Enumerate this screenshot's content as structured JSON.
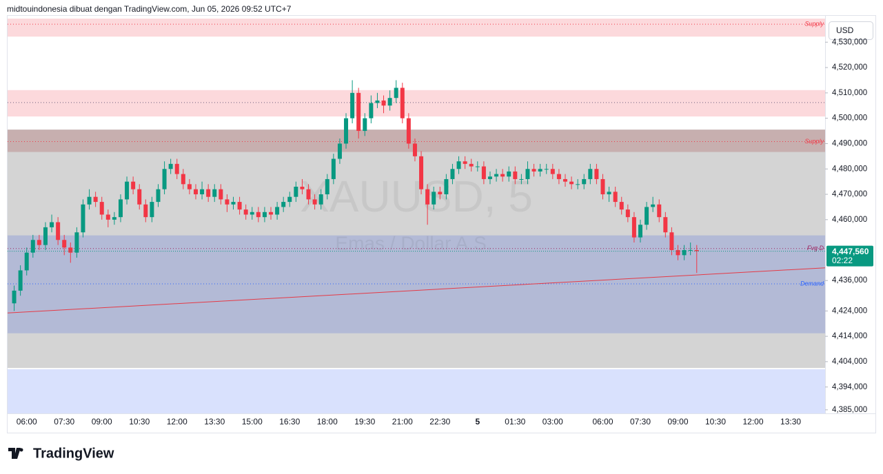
{
  "header": {
    "text": "midtouindonesia dibuat dengan TradingView.com, Jun 05, 2026 09:52 UTC+7"
  },
  "toolbar": {
    "currency": "USD"
  },
  "footer": {
    "logo": "TradingView"
  },
  "chart_data": {
    "type": "candlestick",
    "watermark": {
      "symbol": "XAUUSD, 5",
      "description": "Emas / Dollar A.S."
    },
    "ylim": [
      4383600,
      4539300
    ],
    "yticks": [
      {
        "value": 4530000,
        "label": "4,530,000"
      },
      {
        "value": 4520000,
        "label": "4,520,000"
      },
      {
        "value": 4510000,
        "label": "4,510,000"
      },
      {
        "value": 4500000,
        "label": "4,500,000"
      },
      {
        "value": 4490000,
        "label": "4,490,000"
      },
      {
        "value": 4480000,
        "label": "4,480,000"
      },
      {
        "value": 4470000,
        "label": "4,470,000"
      },
      {
        "value": 4460000,
        "label": "4,460,000"
      },
      {
        "value": 4436000,
        "label": "4,436,000"
      },
      {
        "value": 4424000,
        "label": "4,424,000"
      },
      {
        "value": 4414000,
        "label": "4,414,000"
      },
      {
        "value": 4404000,
        "label": "4,404,000"
      },
      {
        "value": 4394000,
        "label": "4,394,000"
      },
      {
        "value": 4385000,
        "label": "4,385,000"
      }
    ],
    "categories": [
      null,
      null,
      "06:00",
      null,
      null,
      null,
      null,
      null,
      "07:30",
      null,
      null,
      null,
      null,
      null,
      "09:00",
      null,
      null,
      null,
      null,
      null,
      "10:30",
      null,
      null,
      null,
      null,
      null,
      "12:00",
      null,
      null,
      null,
      null,
      null,
      "13:30",
      null,
      null,
      null,
      null,
      null,
      "15:00",
      null,
      null,
      null,
      null,
      null,
      "16:30",
      null,
      null,
      null,
      null,
      null,
      "18:00",
      null,
      null,
      null,
      null,
      null,
      "19:30",
      null,
      null,
      null,
      null,
      null,
      "21:00",
      null,
      null,
      null,
      null,
      null,
      "22:30",
      null,
      null,
      null,
      null,
      null,
      "5",
      null,
      null,
      null,
      null,
      null,
      "01:30",
      null,
      null,
      null,
      null,
      null,
      "03:00",
      null,
      null,
      null,
      null,
      null,
      null,
      null,
      "06:00",
      null,
      null,
      null,
      null,
      null,
      "07:30",
      null,
      null,
      null,
      null,
      null,
      "09:00",
      null,
      null,
      null,
      null,
      null,
      "10:30",
      null,
      null,
      null,
      null,
      null,
      "12:00",
      null,
      null,
      null,
      null,
      null,
      "13:30",
      null,
      null,
      null,
      null,
      null
    ],
    "up_color": "#089981",
    "down_color": "#f23645",
    "open": [
      4427000,
      4432000,
      4440000,
      4447000,
      4452000,
      4450000,
      4457000,
      4459000,
      4452000,
      4449000,
      4447000,
      4455000,
      4466000,
      4469000,
      4467000,
      4462000,
      4460000,
      4461000,
      4468000,
      4475000,
      4472000,
      4466000,
      4461000,
      4467000,
      4472000,
      4480000,
      4482000,
      4478000,
      4474000,
      4472000,
      4470000,
      4472000,
      4469000,
      4472000,
      4468000,
      4466000,
      4467000,
      4464000,
      4462000,
      4463000,
      4461000,
      4463000,
      4462000,
      4465000,
      4467000,
      4469000,
      4473000,
      4472000,
      4468000,
      4466000,
      4470000,
      4476000,
      4484000,
      4490000,
      4500000,
      4510000,
      4495000,
      4500000,
      4506000,
      4507000,
      4505000,
      4508000,
      4512000,
      4500000,
      4490000,
      4485000,
      4472000,
      4466000,
      4471000,
      4470000,
      4476000,
      4480000,
      4483000,
      4482000,
      4481000,
      4481000,
      4476000,
      4477000,
      4478000,
      4477000,
      4479000,
      4476000,
      4476000,
      4480000,
      4479000,
      4480000,
      4480000,
      4478000,
      4476000,
      4475000,
      4474000,
      4474000,
      4476000,
      4480000,
      4476000,
      4470000,
      4471000,
      4467000,
      4464000,
      4461000,
      4453000,
      4458000,
      4465000,
      4466000,
      4461000,
      4455000,
      4448000,
      4446000,
      4448000,
      4448000,
      null,
      null,
      null,
      null,
      null,
      null,
      null,
      null,
      null,
      null,
      null,
      null,
      null,
      null,
      null,
      null,
      null,
      null,
      null,
      null
    ],
    "high": [
      4434000,
      4442000,
      4449000,
      4454000,
      4454000,
      4459000,
      4462000,
      4461000,
      4454000,
      4451000,
      4457000,
      4468000,
      4472000,
      4471000,
      4469000,
      4464000,
      4463000,
      4470000,
      4477000,
      4477000,
      4474000,
      4468000,
      4469000,
      4474000,
      4483000,
      4484000,
      4484000,
      4480000,
      4476000,
      4474000,
      4475000,
      4474000,
      4474000,
      4474000,
      4470000,
      4469000,
      4469000,
      4466000,
      4465000,
      4465000,
      4465000,
      4465000,
      4467000,
      4469000,
      4471000,
      4475000,
      4476000,
      4474000,
      4470000,
      4472000,
      4478000,
      4486000,
      4492000,
      4502000,
      4515000,
      4512000,
      4502000,
      4509000,
      4510000,
      4509000,
      4511000,
      4515000,
      4514000,
      4502000,
      4492000,
      4487000,
      4474000,
      4473000,
      4473000,
      4478000,
      4482000,
      4485000,
      4485000,
      4484000,
      4483000,
      4483000,
      4479000,
      4480000,
      4480000,
      4481000,
      4481000,
      4478000,
      4483000,
      4482000,
      4482000,
      4482000,
      4482000,
      4480000,
      4478000,
      4477000,
      4476000,
      4478000,
      4482000,
      4482000,
      4478000,
      4473000,
      4473000,
      4469000,
      4466000,
      4463000,
      4460000,
      4467000,
      4469000,
      4468000,
      4463000,
      4457000,
      4450000,
      4450000,
      4451000,
      4450000,
      null,
      null,
      null,
      null,
      null,
      null,
      null,
      null,
      null,
      null,
      null,
      null,
      null,
      null,
      null,
      null,
      null,
      null,
      null,
      null
    ],
    "low": [
      4424000,
      4430000,
      4438000,
      4445000,
      4448000,
      4448000,
      4455000,
      4450000,
      4446000,
      4443000,
      4445000,
      4453000,
      4464000,
      4465000,
      4460000,
      4457000,
      4458000,
      4459000,
      4466000,
      4470000,
      4464000,
      4459000,
      4459000,
      4465000,
      4470000,
      4478000,
      4476000,
      4472000,
      4470000,
      4468000,
      4468000,
      4467000,
      4467000,
      4466000,
      4463000,
      4464000,
      4462000,
      4460000,
      4460000,
      4459000,
      4459000,
      4460000,
      4460000,
      4463000,
      4465000,
      4467000,
      4470000,
      4466000,
      4464000,
      4464000,
      4468000,
      4474000,
      4482000,
      4488000,
      4498000,
      4492000,
      4493000,
      4498000,
      4504000,
      4502000,
      4503000,
      4506000,
      4498000,
      4488000,
      4483000,
      4470000,
      4458000,
      4464000,
      4468000,
      4468000,
      4474000,
      4478000,
      4480000,
      4479000,
      4479000,
      4474000,
      4474000,
      4475000,
      4475000,
      4475000,
      4474000,
      4474000,
      4474000,
      4477000,
      4477000,
      4478000,
      4476000,
      4474000,
      4473000,
      4472000,
      4472000,
      4472000,
      4474000,
      4474000,
      4468000,
      4467000,
      4465000,
      4462000,
      4459000,
      4451000,
      4451000,
      4456000,
      4463000,
      4459000,
      4453000,
      4446000,
      4444000,
      4444000,
      4446000,
      4439000,
      null,
      null,
      null,
      null,
      null,
      null,
      null,
      null,
      null,
      null,
      null,
      null,
      null,
      null,
      null,
      null,
      null,
      null,
      null,
      null
    ],
    "close": [
      4432000,
      4440000,
      4447000,
      4452000,
      4450000,
      4457000,
      4459000,
      4452000,
      4449000,
      4447000,
      4455000,
      4466000,
      4469000,
      4467000,
      4462000,
      4460000,
      4461000,
      4468000,
      4475000,
      4472000,
      4466000,
      4461000,
      4467000,
      4472000,
      4480000,
      4482000,
      4478000,
      4474000,
      4472000,
      4470000,
      4472000,
      4469000,
      4472000,
      4468000,
      4466000,
      4467000,
      4464000,
      4462000,
      4463000,
      4461000,
      4463000,
      4462000,
      4465000,
      4467000,
      4469000,
      4473000,
      4472000,
      4468000,
      4466000,
      4470000,
      4476000,
      4484000,
      4490000,
      4500000,
      4510000,
      4495000,
      4500000,
      4506000,
      4507000,
      4505000,
      4508000,
      4512000,
      4500000,
      4490000,
      4485000,
      4472000,
      4466000,
      4471000,
      4470000,
      4476000,
      4480000,
      4483000,
      4482000,
      4481000,
      4481000,
      4476000,
      4477000,
      4478000,
      4477000,
      4479000,
      4476000,
      4476000,
      4480000,
      4479000,
      4480000,
      4480000,
      4478000,
      4476000,
      4475000,
      4474000,
      4474000,
      4476000,
      4480000,
      4476000,
      4470000,
      4471000,
      4467000,
      4464000,
      4461000,
      4453000,
      4458000,
      4465000,
      4466000,
      4461000,
      4455000,
      4448000,
      4446000,
      4448000,
      4448000,
      4447560,
      null,
      null,
      null,
      null,
      null,
      null,
      null,
      null,
      null,
      null,
      null,
      null,
      null,
      null,
      null,
      null,
      null,
      null,
      null,
      null
    ],
    "zones": [
      {
        "ymin": 4532200,
        "ymax": 4539300,
        "color": "#fcd9dc"
      },
      {
        "ymin": 4500700,
        "ymax": 4511100,
        "color": "#fcd9dc"
      },
      {
        "ymin": 4401500,
        "ymax": 4495500,
        "color": "#d4d4d4"
      },
      {
        "ymin": 4486700,
        "ymax": 4495500,
        "color": "#c7afaf"
      },
      {
        "ymin": 4415200,
        "ymax": 4453800,
        "color": "#b3bad6"
      },
      {
        "ymin": 4383600,
        "ymax": 4401000,
        "color": "#d9e1fd"
      }
    ],
    "levels": [
      {
        "value": 4537100,
        "label": "Supply",
        "color": "#f23645"
      },
      {
        "value": 4506200,
        "color": "#6b5b7b"
      },
      {
        "value": 4490800,
        "label": "Supply",
        "color": "#f23645"
      },
      {
        "value": 4448600,
        "label": "Fvg D",
        "color": "#9c1f5b"
      },
      {
        "value": 4434700,
        "label": "Demand",
        "color": "#2962ff"
      }
    ],
    "trendline": {
      "values": [
        4423200,
        4441000
      ],
      "color": "#e53945"
    },
    "last": {
      "value": 4447560,
      "label": "4,447,560",
      "countdown": "02:22",
      "color": "#089981"
    }
  }
}
